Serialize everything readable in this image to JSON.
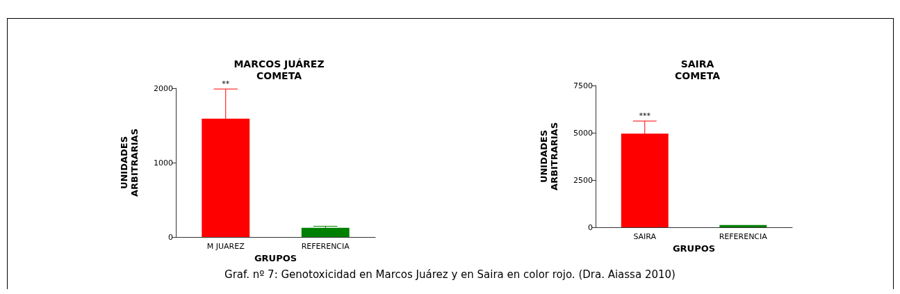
{
  "chart_data": [
    {
      "type": "bar",
      "title": "MARCOS JUÁREZ\nCOMETA",
      "xlabel": "GRUPOS",
      "ylabel": "UNIDADES\nARBITRARIAS",
      "categories": [
        "M JUAREZ",
        "REFERENCIA"
      ],
      "values": [
        1590,
        125
      ],
      "colors": [
        "#ff0000",
        "#008000"
      ],
      "errors": [
        400,
        20
      ],
      "ylim": [
        0,
        2000
      ],
      "yticks": [
        0,
        1000,
        2000
      ],
      "annotations": [
        {
          "text": "**",
          "x": "M JUAREZ",
          "y": 1990
        },
        "Graf. nº 7: Genotoxicidad en Marcos Juárez y en Saira en color rojo. (Dra. Aiassa 2010)"
      ]
    },
    {
      "type": "bar",
      "title": "SAIRA\nCOMETA",
      "xlabel": "GRUPOS",
      "ylabel": "UNIDADES\nARBITRARIAS",
      "categories": [
        "SAIRA",
        "REFERENCIA"
      ],
      "values": [
        4950,
        120
      ],
      "colors": [
        "#ff0000",
        "#008000"
      ],
      "errors": [
        670,
        null
      ],
      "ylim": [
        0,
        7500
      ],
      "yticks": [
        0,
        2500,
        5000,
        7500
      ],
      "annotations": [
        {
          "text": "***",
          "x": "SAIRA",
          "y": 5620
        }
      ]
    }
  ]
}
